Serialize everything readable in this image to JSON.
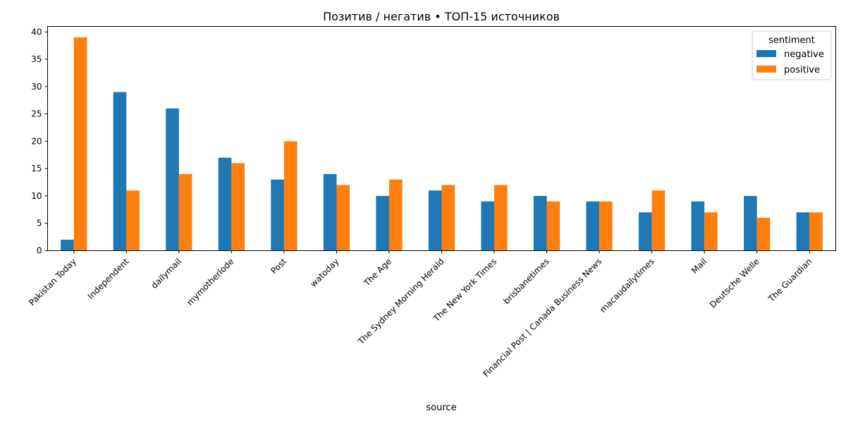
{
  "chart_data": {
    "type": "bar",
    "title": "Позитив / негатив • ТОП-15 источников",
    "xlabel": "source",
    "ylabel": "",
    "ylim": [
      0,
      41
    ],
    "yticks": [
      0,
      5,
      10,
      15,
      20,
      25,
      30,
      35,
      40
    ],
    "categories": [
      "Pakistan Today",
      "Independent",
      "dailymail",
      "mymotherlode",
      "Post",
      "watoday",
      "The Age",
      "The Sydney Morning Herald",
      "The New York Times",
      "brisbanetimes",
      "Financial Post | Canada Business News",
      "macaudailytimes",
      "Mail",
      "Deutsche Welle",
      "The Guardian"
    ],
    "series": [
      {
        "name": "negative",
        "color": "#1f77b4",
        "values": [
          2,
          29,
          26,
          17,
          13,
          14,
          10,
          11,
          9,
          10,
          9,
          7,
          9,
          10,
          7
        ]
      },
      {
        "name": "positive",
        "color": "#ff7f0e",
        "values": [
          39,
          11,
          14,
          16,
          20,
          12,
          13,
          12,
          12,
          9,
          9,
          11,
          7,
          6,
          7
        ]
      }
    ],
    "legend": {
      "title": "sentiment",
      "position": "top-right"
    },
    "grid": false
  }
}
